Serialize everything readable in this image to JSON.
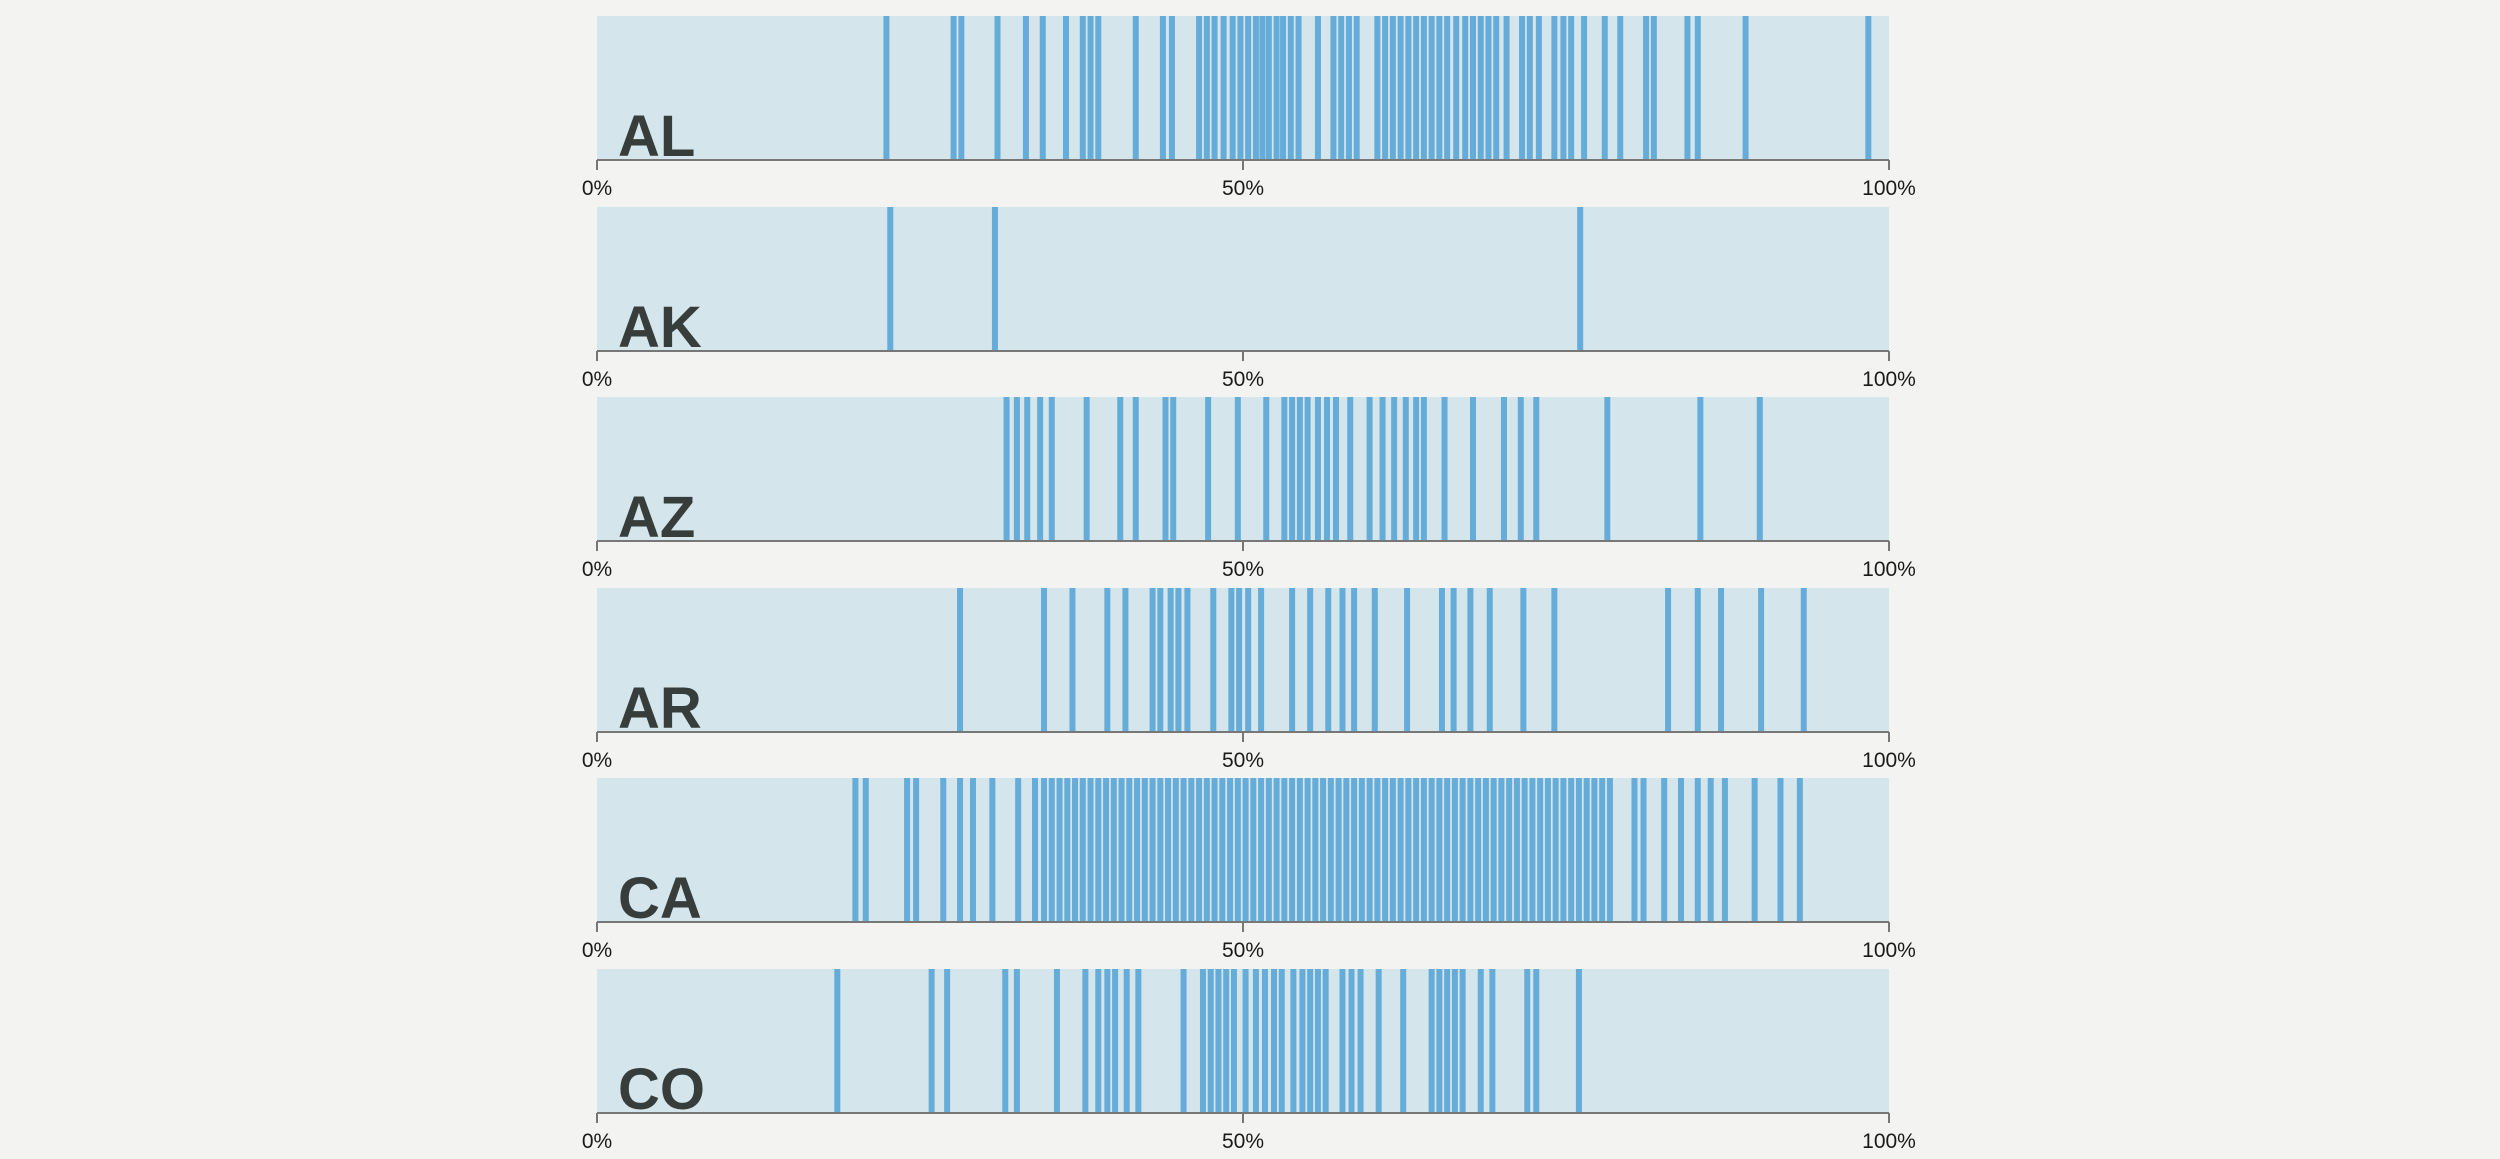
{
  "colors": {
    "page_background": "#f3f3f1",
    "strip_background": "#d5e5ec",
    "mark": "#3b95d0",
    "axis": "#777777",
    "label": "#363d3a"
  },
  "chart_data": [
    {
      "type": "strip",
      "title": "AL",
      "xlim": [
        0,
        100
      ],
      "tick_labels": [
        "0%",
        "50%",
        "100%"
      ],
      "values": [
        22.4,
        27.6,
        28.2,
        31.0,
        33.2,
        34.5,
        36.3,
        37.6,
        38.2,
        38.8,
        41.7,
        43.8,
        44.5,
        46.6,
        47.2,
        47.8,
        48.5,
        49.2,
        49.8,
        50.4,
        51.0,
        51.5,
        52.0,
        52.6,
        53.1,
        53.7,
        54.3,
        55.8,
        57.0,
        57.6,
        58.2,
        58.8,
        60.4,
        61.0,
        61.6,
        62.2,
        62.8,
        63.4,
        64.0,
        64.6,
        65.2,
        65.8,
        66.5,
        67.2,
        67.8,
        68.4,
        69.0,
        69.6,
        70.4,
        71.6,
        72.2,
        72.9,
        74.1,
        74.8,
        75.4,
        76.4,
        78.0,
        79.2,
        81.2,
        81.8,
        84.4,
        85.2,
        88.9,
        98.4
      ]
    },
    {
      "type": "strip",
      "title": "AK",
      "xlim": [
        0,
        100
      ],
      "tick_labels": [
        "0%",
        "50%",
        "100%"
      ],
      "values": [
        22.7,
        30.8,
        76.1
      ]
    },
    {
      "type": "strip",
      "title": "AZ",
      "xlim": [
        0,
        100
      ],
      "tick_labels": [
        "0%",
        "50%",
        "100%"
      ],
      "values": [
        31.7,
        32.5,
        33.3,
        34.3,
        35.2,
        37.9,
        40.5,
        41.7,
        44.0,
        44.6,
        47.3,
        49.6,
        51.8,
        53.2,
        53.8,
        54.4,
        55.0,
        55.8,
        56.5,
        57.2,
        58.3,
        59.8,
        60.8,
        61.7,
        62.6,
        63.4,
        64.0,
        65.6,
        67.8,
        70.2,
        71.5,
        72.7,
        78.2,
        85.4,
        90.0
      ]
    },
    {
      "type": "strip",
      "title": "AR",
      "xlim": [
        0,
        100
      ],
      "tick_labels": [
        "0%",
        "50%",
        "100%"
      ],
      "values": [
        28.1,
        34.6,
        36.8,
        39.5,
        40.9,
        43.0,
        43.6,
        44.4,
        45.0,
        45.7,
        47.7,
        49.1,
        49.7,
        50.4,
        51.4,
        53.8,
        55.2,
        56.6,
        57.7,
        58.6,
        60.2,
        62.7,
        65.4,
        66.3,
        67.6,
        69.1,
        71.7,
        74.1,
        82.9,
        85.2,
        87.0,
        90.1,
        93.4
      ]
    },
    {
      "type": "strip",
      "title": "CA",
      "xlim": [
        0,
        100
      ],
      "tick_labels": [
        "0%",
        "50%",
        "100%"
      ],
      "values": [
        20.0,
        20.8,
        24.0,
        24.7,
        26.8,
        28.1,
        29.1,
        30.6,
        32.6,
        33.9,
        34.6,
        35.2,
        35.8,
        36.4,
        37.0,
        37.6,
        38.2,
        38.8,
        39.4,
        40.0,
        40.6,
        41.2,
        41.8,
        42.4,
        43.0,
        43.6,
        44.2,
        44.8,
        45.4,
        46.0,
        46.6,
        47.2,
        47.8,
        48.4,
        49.0,
        49.6,
        50.2,
        50.8,
        51.4,
        52.0,
        52.6,
        53.2,
        53.8,
        54.4,
        55.0,
        55.6,
        56.2,
        56.8,
        57.4,
        58.0,
        58.6,
        59.2,
        59.8,
        60.4,
        61.0,
        61.6,
        62.2,
        62.8,
        63.4,
        64.0,
        64.6,
        65.2,
        65.8,
        66.4,
        67.0,
        67.6,
        68.2,
        68.8,
        69.4,
        70.0,
        70.6,
        71.2,
        71.8,
        72.4,
        73.0,
        73.6,
        74.2,
        74.8,
        75.4,
        76.0,
        76.6,
        77.2,
        77.8,
        78.4,
        80.3,
        81.0,
        82.6,
        83.9,
        85.2,
        86.2,
        87.3,
        89.6,
        91.6,
        93.1
      ]
    },
    {
      "type": "strip",
      "title": "CO",
      "xlim": [
        0,
        100
      ],
      "tick_labels": [
        "0%",
        "50%",
        "100%"
      ],
      "values": [
        18.6,
        25.9,
        27.1,
        31.6,
        32.5,
        35.6,
        37.8,
        38.8,
        39.5,
        40.1,
        41.0,
        41.9,
        45.4,
        46.9,
        47.5,
        48.1,
        48.7,
        49.3,
        50.2,
        51.0,
        51.7,
        52.4,
        53.0,
        53.9,
        54.6,
        55.2,
        55.8,
        56.4,
        57.7,
        58.4,
        59.1,
        60.5,
        62.4,
        64.6,
        65.2,
        65.8,
        66.4,
        67.0,
        68.4,
        69.3,
        72.0,
        72.7,
        76.0
      ]
    }
  ]
}
